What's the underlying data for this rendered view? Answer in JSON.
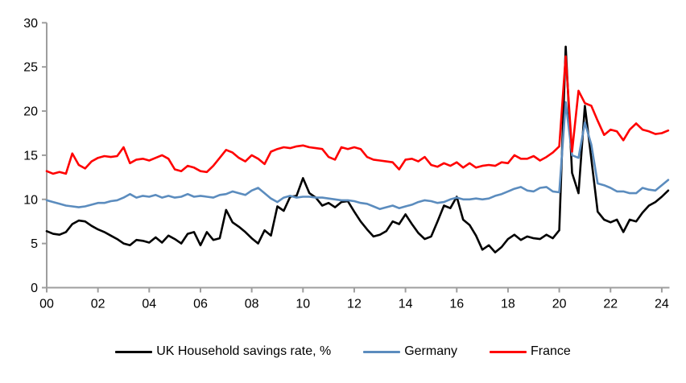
{
  "chart_data": {
    "type": "line",
    "title": "",
    "x_start_year": 2000,
    "points_per_year": 4,
    "x_tick_interval_years": 2,
    "x_tick_labels": [
      "00",
      "02",
      "04",
      "06",
      "08",
      "10",
      "12",
      "14",
      "16",
      "18",
      "20",
      "22",
      "24"
    ],
    "y_ticks": [
      "0",
      "5",
      "10",
      "15",
      "20",
      "25",
      "30"
    ],
    "ylim": [
      0,
      30
    ],
    "xlim_years": [
      0,
      24.3
    ],
    "grid": "off",
    "legend_position": "bottom-center",
    "axis_color": "#9e9e9e",
    "tick_label_color": "#000000",
    "series": [
      {
        "name": "UK Household savings rate, %",
        "color": "#000000",
        "values": [
          6.4,
          6.1,
          6.0,
          6.3,
          7.2,
          7.6,
          7.5,
          7.0,
          6.6,
          6.3,
          5.9,
          5.5,
          5.0,
          4.8,
          5.4,
          5.3,
          5.1,
          5.7,
          5.1,
          5.9,
          5.5,
          5.0,
          6.1,
          6.3,
          4.8,
          6.3,
          5.4,
          5.6,
          8.8,
          7.4,
          6.9,
          6.3,
          5.6,
          5.0,
          6.5,
          5.9,
          9.2,
          8.7,
          10.3,
          10.4,
          12.4,
          10.7,
          10.2,
          9.3,
          9.6,
          9.1,
          9.7,
          9.8,
          8.6,
          7.5,
          6.6,
          5.8,
          6.0,
          6.4,
          7.5,
          7.2,
          8.3,
          7.2,
          6.2,
          5.5,
          5.8,
          7.5,
          9.3,
          9.0,
          10.3,
          7.7,
          7.1,
          5.9,
          4.3,
          4.8,
          4.0,
          4.6,
          5.5,
          6.0,
          5.4,
          5.8,
          5.6,
          5.5,
          6.0,
          5.6,
          6.5,
          27.3,
          13.0,
          10.7,
          20.6,
          14.6,
          8.6,
          7.7,
          7.4,
          7.7,
          6.3,
          7.7,
          7.5,
          8.5,
          9.3,
          9.7,
          10.3,
          11.0
        ]
      },
      {
        "name": "Germany",
        "color": "#5b8cbe",
        "values": [
          9.9,
          9.7,
          9.5,
          9.3,
          9.2,
          9.1,
          9.2,
          9.4,
          9.6,
          9.6,
          9.8,
          9.9,
          10.2,
          10.6,
          10.2,
          10.4,
          10.3,
          10.5,
          10.2,
          10.4,
          10.2,
          10.3,
          10.6,
          10.3,
          10.4,
          10.3,
          10.2,
          10.5,
          10.6,
          10.9,
          10.7,
          10.5,
          11.0,
          11.3,
          10.7,
          10.1,
          9.7,
          10.2,
          10.4,
          10.2,
          10.3,
          10.3,
          10.2,
          10.2,
          10.1,
          10.0,
          9.9,
          9.9,
          9.8,
          9.6,
          9.5,
          9.2,
          8.9,
          9.1,
          9.3,
          9.0,
          9.2,
          9.4,
          9.7,
          9.9,
          9.8,
          9.6,
          9.7,
          10.0,
          10.2,
          10.0,
          10.0,
          10.1,
          10.0,
          10.1,
          10.4,
          10.6,
          10.9,
          11.2,
          11.4,
          11.0,
          10.9,
          11.3,
          11.4,
          10.9,
          10.8,
          21.0,
          15.0,
          14.7,
          18.7,
          16.2,
          11.8,
          11.6,
          11.3,
          10.9,
          10.9,
          10.7,
          10.7,
          11.3,
          11.1,
          11.0,
          11.6,
          12.2
        ]
      },
      {
        "name": "France",
        "color": "#ff0000",
        "values": [
          13.2,
          12.9,
          13.1,
          12.9,
          15.2,
          13.9,
          13.5,
          14.3,
          14.7,
          14.9,
          14.8,
          14.9,
          15.9,
          14.1,
          14.5,
          14.6,
          14.4,
          14.7,
          15.0,
          14.6,
          13.4,
          13.2,
          13.8,
          13.6,
          13.2,
          13.1,
          13.8,
          14.7,
          15.6,
          15.3,
          14.7,
          14.3,
          15.0,
          14.6,
          14.0,
          15.4,
          15.7,
          15.9,
          15.8,
          16.0,
          16.1,
          15.9,
          15.8,
          15.7,
          14.8,
          14.5,
          15.9,
          15.7,
          15.9,
          15.7,
          14.8,
          14.5,
          14.4,
          14.3,
          14.2,
          13.4,
          14.5,
          14.6,
          14.3,
          14.8,
          13.9,
          13.7,
          14.1,
          13.8,
          14.2,
          13.6,
          14.1,
          13.6,
          13.8,
          13.9,
          13.8,
          14.2,
          14.1,
          15.0,
          14.6,
          14.6,
          14.9,
          14.4,
          14.8,
          15.3,
          16.0,
          26.2,
          15.4,
          22.3,
          20.9,
          20.6,
          18.9,
          17.3,
          17.9,
          17.7,
          16.7,
          17.9,
          18.6,
          17.9,
          17.7,
          17.4,
          17.5,
          17.8
        ]
      }
    ]
  }
}
